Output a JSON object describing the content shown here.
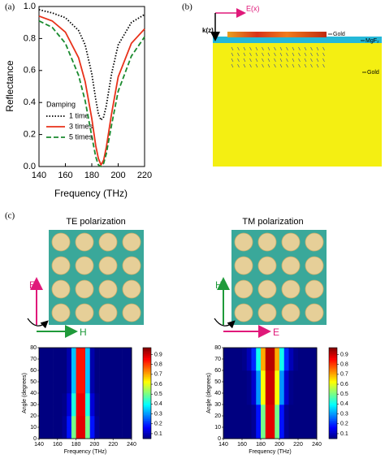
{
  "panel_labels": [
    "(a)",
    "(b)",
    "(c)"
  ],
  "simulation": {
    "e_label": "E(x)",
    "k_label": "k(z)",
    "layers": [
      "Gold",
      "MgF₂",
      "Gold"
    ]
  },
  "polarization": [
    {
      "title": "TE polarization",
      "vertical_axis": "E",
      "horizontal_axis": "H"
    },
    {
      "title": "TM polarization",
      "vertical_axis": "H",
      "horizontal_axis": "E"
    }
  ],
  "chart_data": [
    {
      "type": "line",
      "xlabel": "Frequency (THz)",
      "ylabel": "Reflectance",
      "legend_title": "Damping",
      "x": [
        140,
        150,
        160,
        170,
        175,
        180,
        183,
        185,
        187,
        189,
        191,
        195,
        200,
        210,
        220
      ],
      "series": [
        {
          "name": "1 time",
          "color": "#000000",
          "linestyle": "dotted",
          "values": [
            0.98,
            0.96,
            0.93,
            0.85,
            0.76,
            0.58,
            0.42,
            0.33,
            0.29,
            0.31,
            0.38,
            0.58,
            0.76,
            0.9,
            0.95
          ]
        },
        {
          "name": "3 times",
          "color": "#e8311a",
          "linestyle": "solid",
          "values": [
            0.94,
            0.91,
            0.84,
            0.68,
            0.53,
            0.3,
            0.13,
            0.05,
            0.01,
            0.04,
            0.12,
            0.33,
            0.56,
            0.77,
            0.86
          ]
        },
        {
          "name": "5 times",
          "color": "#1a8a2e",
          "linestyle": "dashed",
          "values": [
            0.91,
            0.87,
            0.77,
            0.57,
            0.41,
            0.19,
            0.06,
            0.01,
            0.0,
            0.02,
            0.08,
            0.26,
            0.47,
            0.69,
            0.81
          ]
        }
      ],
      "xlim": [
        140,
        220
      ],
      "xticks": [
        140,
        160,
        180,
        200,
        220
      ],
      "ylim": [
        0,
        1
      ],
      "yticks": [
        {
          "value": 0,
          "label": "0.0"
        },
        0.2,
        0.4,
        0.6,
        0.8,
        {
          "value": 1,
          "label": "1.0"
        }
      ]
    },
    {
      "type": "heatmap",
      "xlabel": "Frequency (THz)",
      "ylabel": "Angle (degrees)",
      "xbins": [
        140,
        145,
        150,
        155,
        160,
        165,
        170,
        175,
        180,
        185,
        190,
        195,
        200,
        205,
        210,
        215,
        220,
        225,
        230,
        235,
        240
      ],
      "ybins": [
        0,
        10,
        20,
        30,
        40,
        50,
        60,
        70,
        80
      ],
      "values": [
        [
          0.05,
          0.05,
          0.05,
          0.05,
          0.05,
          0.07,
          0.18,
          0.5,
          0.88,
          0.88,
          0.5,
          0.18,
          0.07,
          0.05,
          0.05,
          0.05,
          0.05,
          0.05,
          0.05,
          0.05
        ],
        [
          0.05,
          0.05,
          0.05,
          0.05,
          0.05,
          0.07,
          0.18,
          0.5,
          0.88,
          0.88,
          0.5,
          0.18,
          0.07,
          0.05,
          0.05,
          0.05,
          0.05,
          0.05,
          0.05,
          0.05
        ],
        [
          0.05,
          0.05,
          0.05,
          0.05,
          0.05,
          0.06,
          0.13,
          0.42,
          0.87,
          0.87,
          0.42,
          0.13,
          0.06,
          0.05,
          0.05,
          0.05,
          0.05,
          0.05,
          0.05,
          0.05
        ],
        [
          0.05,
          0.05,
          0.05,
          0.05,
          0.05,
          0.06,
          0.13,
          0.42,
          0.87,
          0.87,
          0.42,
          0.13,
          0.06,
          0.05,
          0.05,
          0.05,
          0.05,
          0.05,
          0.05,
          0.05
        ],
        [
          0.05,
          0.05,
          0.05,
          0.05,
          0.05,
          0.05,
          0.09,
          0.34,
          0.84,
          0.84,
          0.34,
          0.09,
          0.05,
          0.05,
          0.05,
          0.05,
          0.05,
          0.05,
          0.05,
          0.05
        ],
        [
          0.05,
          0.05,
          0.05,
          0.05,
          0.05,
          0.05,
          0.09,
          0.34,
          0.84,
          0.84,
          0.34,
          0.09,
          0.05,
          0.05,
          0.05,
          0.05,
          0.05,
          0.05,
          0.05,
          0.05
        ],
        [
          0.05,
          0.05,
          0.05,
          0.05,
          0.05,
          0.05,
          0.09,
          0.34,
          0.84,
          0.84,
          0.34,
          0.09,
          0.05,
          0.05,
          0.05,
          0.05,
          0.05,
          0.05,
          0.05,
          0.05
        ],
        [
          0.05,
          0.05,
          0.05,
          0.05,
          0.05,
          0.05,
          0.09,
          0.34,
          0.84,
          0.84,
          0.34,
          0.09,
          0.05,
          0.05,
          0.05,
          0.05,
          0.05,
          0.05,
          0.05,
          0.05
        ]
      ],
      "xlim": [
        140,
        240
      ],
      "xticks": [
        140,
        160,
        180,
        200,
        220,
        240
      ],
      "ylim": [
        0,
        80
      ],
      "yticks": [
        0,
        10,
        20,
        30,
        40,
        50,
        60,
        70,
        80
      ],
      "colormap": "jet",
      "clim": [
        0.05,
        0.97
      ],
      "cticks": [
        0.1,
        0.2,
        0.3,
        0.4,
        0.5,
        0.6,
        0.7,
        0.8,
        0.9
      ]
    },
    {
      "type": "heatmap",
      "xlabel": "Frequency (THz)",
      "ylabel": "Angle (degrees)",
      "xbins": [
        140,
        145,
        150,
        155,
        160,
        165,
        170,
        175,
        180,
        185,
        190,
        195,
        200,
        205,
        210,
        215,
        220,
        225,
        230,
        235,
        240
      ],
      "ybins": [
        0,
        10,
        20,
        30,
        40,
        50,
        60,
        70,
        80
      ],
      "values": [
        [
          0.05,
          0.05,
          0.05,
          0.05,
          0.05,
          0.05,
          0.07,
          0.18,
          0.5,
          0.88,
          0.88,
          0.5,
          0.18,
          0.07,
          0.05,
          0.05,
          0.05,
          0.05,
          0.05,
          0.05
        ],
        [
          0.05,
          0.05,
          0.05,
          0.05,
          0.05,
          0.05,
          0.07,
          0.18,
          0.5,
          0.88,
          0.88,
          0.5,
          0.18,
          0.07,
          0.05,
          0.05,
          0.05,
          0.05,
          0.05,
          0.05
        ],
        [
          0.05,
          0.05,
          0.05,
          0.05,
          0.05,
          0.05,
          0.07,
          0.18,
          0.5,
          0.88,
          0.88,
          0.5,
          0.18,
          0.07,
          0.05,
          0.05,
          0.05,
          0.05,
          0.05,
          0.05
        ],
        [
          0.05,
          0.05,
          0.05,
          0.05,
          0.05,
          0.06,
          0.12,
          0.3,
          0.62,
          0.9,
          0.9,
          0.62,
          0.3,
          0.12,
          0.06,
          0.05,
          0.05,
          0.05,
          0.05,
          0.05
        ],
        [
          0.05,
          0.05,
          0.05,
          0.05,
          0.05,
          0.06,
          0.12,
          0.3,
          0.62,
          0.9,
          0.9,
          0.62,
          0.3,
          0.12,
          0.06,
          0.05,
          0.05,
          0.05,
          0.05,
          0.05
        ],
        [
          0.05,
          0.05,
          0.05,
          0.05,
          0.05,
          0.06,
          0.12,
          0.3,
          0.62,
          0.9,
          0.9,
          0.62,
          0.3,
          0.12,
          0.06,
          0.05,
          0.05,
          0.05,
          0.05,
          0.05
        ],
        [
          0.05,
          0.05,
          0.05,
          0.05,
          0.06,
          0.1,
          0.2,
          0.41,
          0.7,
          0.92,
          0.92,
          0.7,
          0.41,
          0.2,
          0.1,
          0.06,
          0.05,
          0.05,
          0.05,
          0.05
        ],
        [
          0.05,
          0.05,
          0.05,
          0.05,
          0.06,
          0.1,
          0.2,
          0.41,
          0.7,
          0.92,
          0.92,
          0.7,
          0.41,
          0.2,
          0.1,
          0.06,
          0.05,
          0.05,
          0.05,
          0.05
        ]
      ],
      "xlim": [
        140,
        240
      ],
      "xticks": [
        140,
        160,
        180,
        200,
        220,
        240
      ],
      "ylim": [
        0,
        80
      ],
      "yticks": [
        0,
        10,
        20,
        30,
        40,
        50,
        60,
        70,
        80
      ],
      "colormap": "jet",
      "clim": [
        0.05,
        0.97
      ],
      "cticks": [
        0.1,
        0.2,
        0.3,
        0.4,
        0.5,
        0.6,
        0.7,
        0.8,
        0.9
      ]
    }
  ]
}
